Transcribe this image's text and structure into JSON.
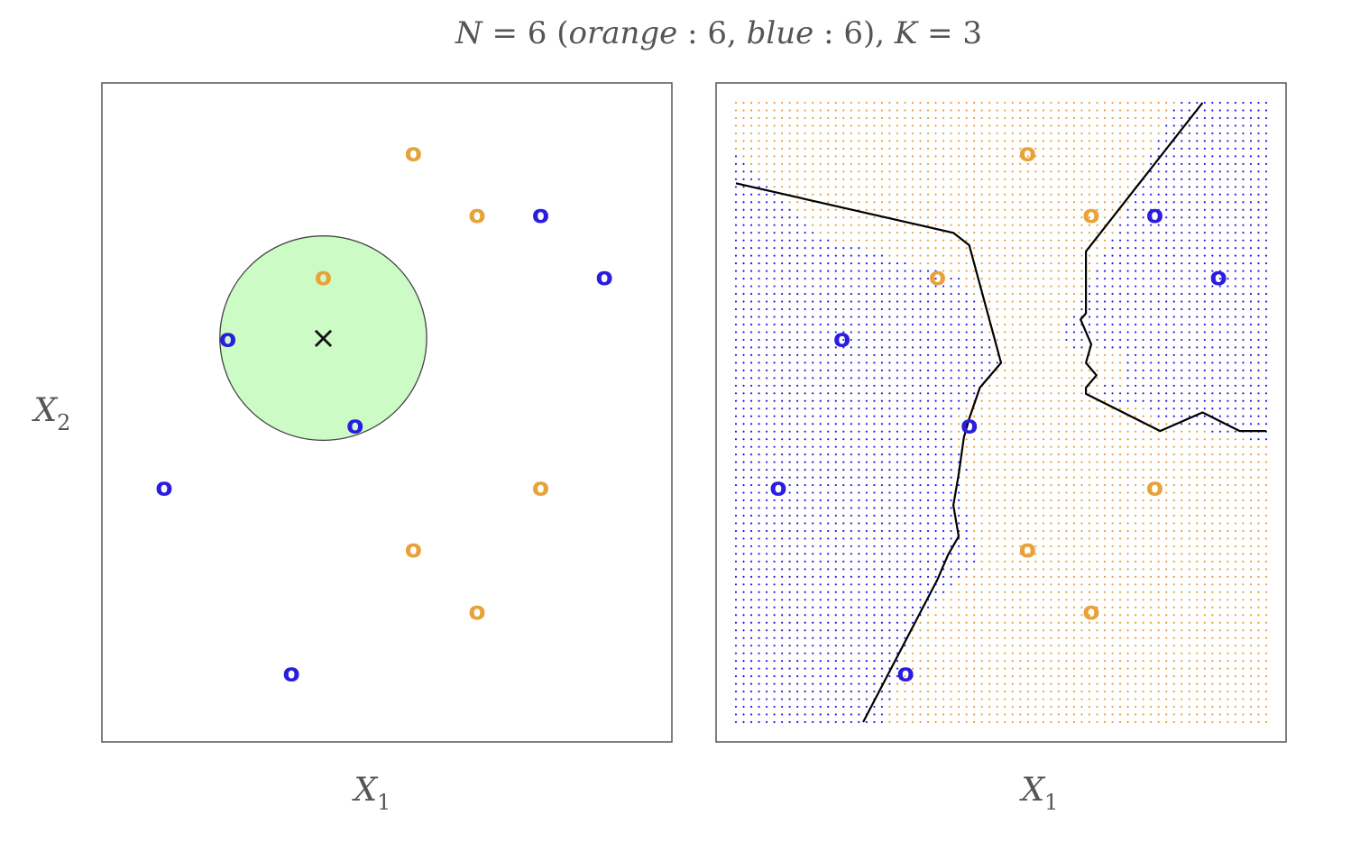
{
  "figure": {
    "title_parts": {
      "n": "N",
      "eq1": " = 6 (",
      "orange": "orange",
      "colon1": " : 6, ",
      "blue": "blue",
      "colon2": " : 6), ",
      "k": "K",
      "eq2": " = 3"
    }
  },
  "colors": {
    "orange": "#e8a23a",
    "blue": "#2a1de0",
    "circle_fill": "#ccfbc6",
    "frame": "#555555"
  },
  "chart_data": [
    {
      "type": "scatter",
      "panel": "left",
      "xlabel": "X",
      "xlabel_sub": "1",
      "ylabel": "X",
      "ylabel_sub": "2",
      "xlim": [
        0,
        1
      ],
      "ylim": [
        0,
        1
      ],
      "grid": false,
      "marker": "o",
      "series": [
        {
          "name": "orange",
          "color": "#e8a23a",
          "points": [
            [
              0.55,
              0.92
            ],
            [
              0.67,
              0.82
            ],
            [
              0.38,
              0.72
            ],
            [
              0.79,
              0.38
            ],
            [
              0.55,
              0.28
            ],
            [
              0.67,
              0.18
            ]
          ]
        },
        {
          "name": "blue",
          "color": "#2a1de0",
          "points": [
            [
              0.79,
              0.82
            ],
            [
              0.91,
              0.72
            ],
            [
              0.2,
              0.62
            ],
            [
              0.44,
              0.48
            ],
            [
              0.08,
              0.38
            ],
            [
              0.32,
              0.08
            ]
          ]
        }
      ],
      "test_point": {
        "x": 0.38,
        "y": 0.62,
        "marker": "×"
      },
      "neighborhood": {
        "center": [
          0.38,
          0.62
        ],
        "rx": 0.195,
        "ry": 0.165,
        "color": "#ccfbc6"
      }
    },
    {
      "type": "scatter",
      "panel": "right",
      "xlabel": "X",
      "xlabel_sub": "1",
      "xlim": [
        0,
        1
      ],
      "ylim": [
        0,
        1
      ],
      "grid": false,
      "marker": "o",
      "series": [
        {
          "name": "orange",
          "color": "#e8a23a",
          "points": [
            [
              0.55,
              0.92
            ],
            [
              0.67,
              0.82
            ],
            [
              0.38,
              0.72
            ],
            [
              0.79,
              0.38
            ],
            [
              0.55,
              0.28
            ],
            [
              0.67,
              0.18
            ]
          ]
        },
        {
          "name": "blue",
          "color": "#2a1de0",
          "points": [
            [
              0.79,
              0.82
            ],
            [
              0.91,
              0.72
            ],
            [
              0.2,
              0.62
            ],
            [
              0.44,
              0.48
            ],
            [
              0.08,
              0.38
            ],
            [
              0.32,
              0.08
            ]
          ]
        }
      ],
      "background": "K=3 nearest-neighbour classification grid",
      "decision_boundaries": [
        [
          [
            0.0,
            0.87
          ],
          [
            0.41,
            0.79
          ],
          [
            0.44,
            0.77
          ],
          [
            0.5,
            0.58
          ],
          [
            0.46,
            0.54
          ],
          [
            0.44,
            0.49
          ],
          [
            0.43,
            0.46
          ],
          [
            0.42,
            0.4
          ],
          [
            0.41,
            0.35
          ],
          [
            0.42,
            0.3
          ],
          [
            0.4,
            0.27
          ],
          [
            0.38,
            0.23
          ],
          [
            0.24,
            0.0
          ]
        ],
        [
          [
            0.88,
            1.0
          ],
          [
            0.66,
            0.76
          ],
          [
            0.66,
            0.66
          ],
          [
            0.65,
            0.65
          ],
          [
            0.66,
            0.63
          ],
          [
            0.67,
            0.61
          ],
          [
            0.66,
            0.58
          ],
          [
            0.68,
            0.56
          ],
          [
            0.66,
            0.54
          ],
          [
            0.66,
            0.53
          ],
          [
            0.8,
            0.47
          ],
          [
            0.88,
            0.5
          ],
          [
            0.95,
            0.47
          ],
          [
            1.0,
            0.47
          ]
        ]
      ],
      "boundary_color": "#000000"
    }
  ]
}
